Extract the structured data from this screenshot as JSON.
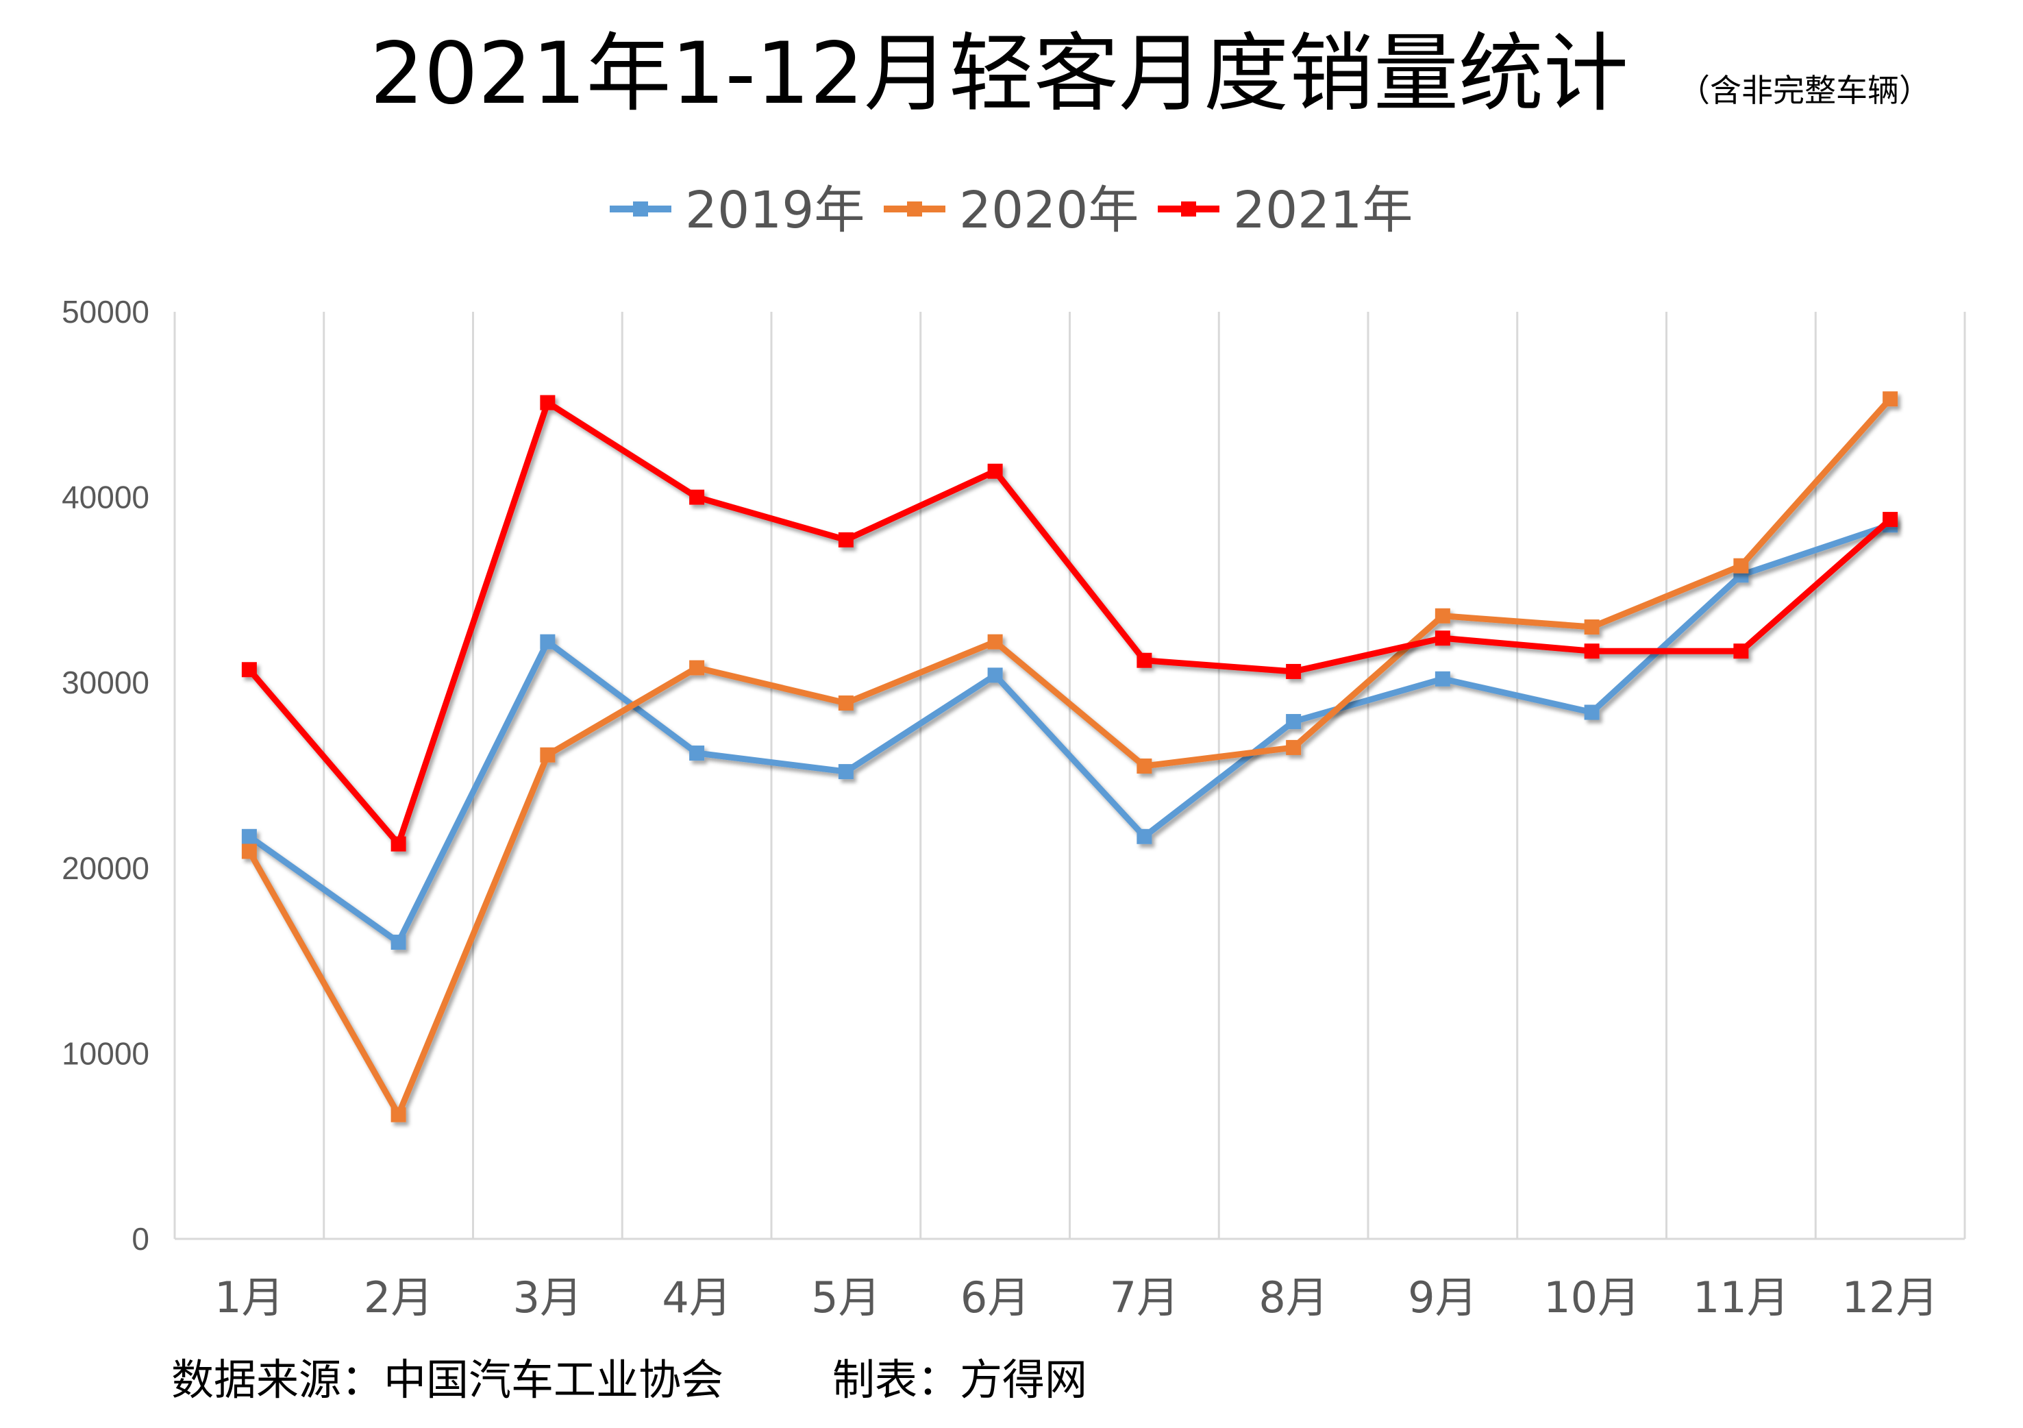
{
  "title": "2021年1-12月轻客月度销量统计",
  "subtitle": "（含非完整车辆）",
  "source_text": "数据来源：中国汽车工业协会",
  "maker_text": "制表：方得网",
  "colors": {
    "series_2019": "#5b9bd5",
    "series_2020": "#ed7d31",
    "series_2021": "#ff0000",
    "grid": "#d9d9d9",
    "tick_text": "#595959"
  },
  "chart_data": {
    "type": "line",
    "title": "2021年1-12月轻客月度销量统计",
    "subtitle": "（含非完整车辆）",
    "categories": [
      "1月",
      "2月",
      "3月",
      "4月",
      "5月",
      "6月",
      "7月",
      "8月",
      "9月",
      "10月",
      "11月",
      "12月"
    ],
    "ylim": [
      0,
      50000
    ],
    "yticks": [
      0,
      10000,
      20000,
      30000,
      40000,
      50000
    ],
    "ytick_labels": [
      "0",
      "10000",
      "20000",
      "30000",
      "40000",
      "50000"
    ],
    "grid": true,
    "grid_orientation": "vertical",
    "legend_position": "top",
    "series": [
      {
        "name": "2019年",
        "color": "#5b9bd5",
        "values": [
          21700,
          16000,
          32200,
          26200,
          25200,
          30400,
          21700,
          27900,
          30200,
          28400,
          35800,
          38500
        ]
      },
      {
        "name": "2020年",
        "color": "#ed7d31",
        "values": [
          20900,
          6700,
          26100,
          30800,
          28900,
          32200,
          25500,
          26500,
          33600,
          33000,
          36300,
          45300
        ]
      },
      {
        "name": "2021年",
        "color": "#ff0000",
        "values": [
          30700,
          21300,
          45100,
          40000,
          37700,
          41400,
          31200,
          30600,
          32400,
          31700,
          31700,
          38800
        ]
      }
    ]
  }
}
